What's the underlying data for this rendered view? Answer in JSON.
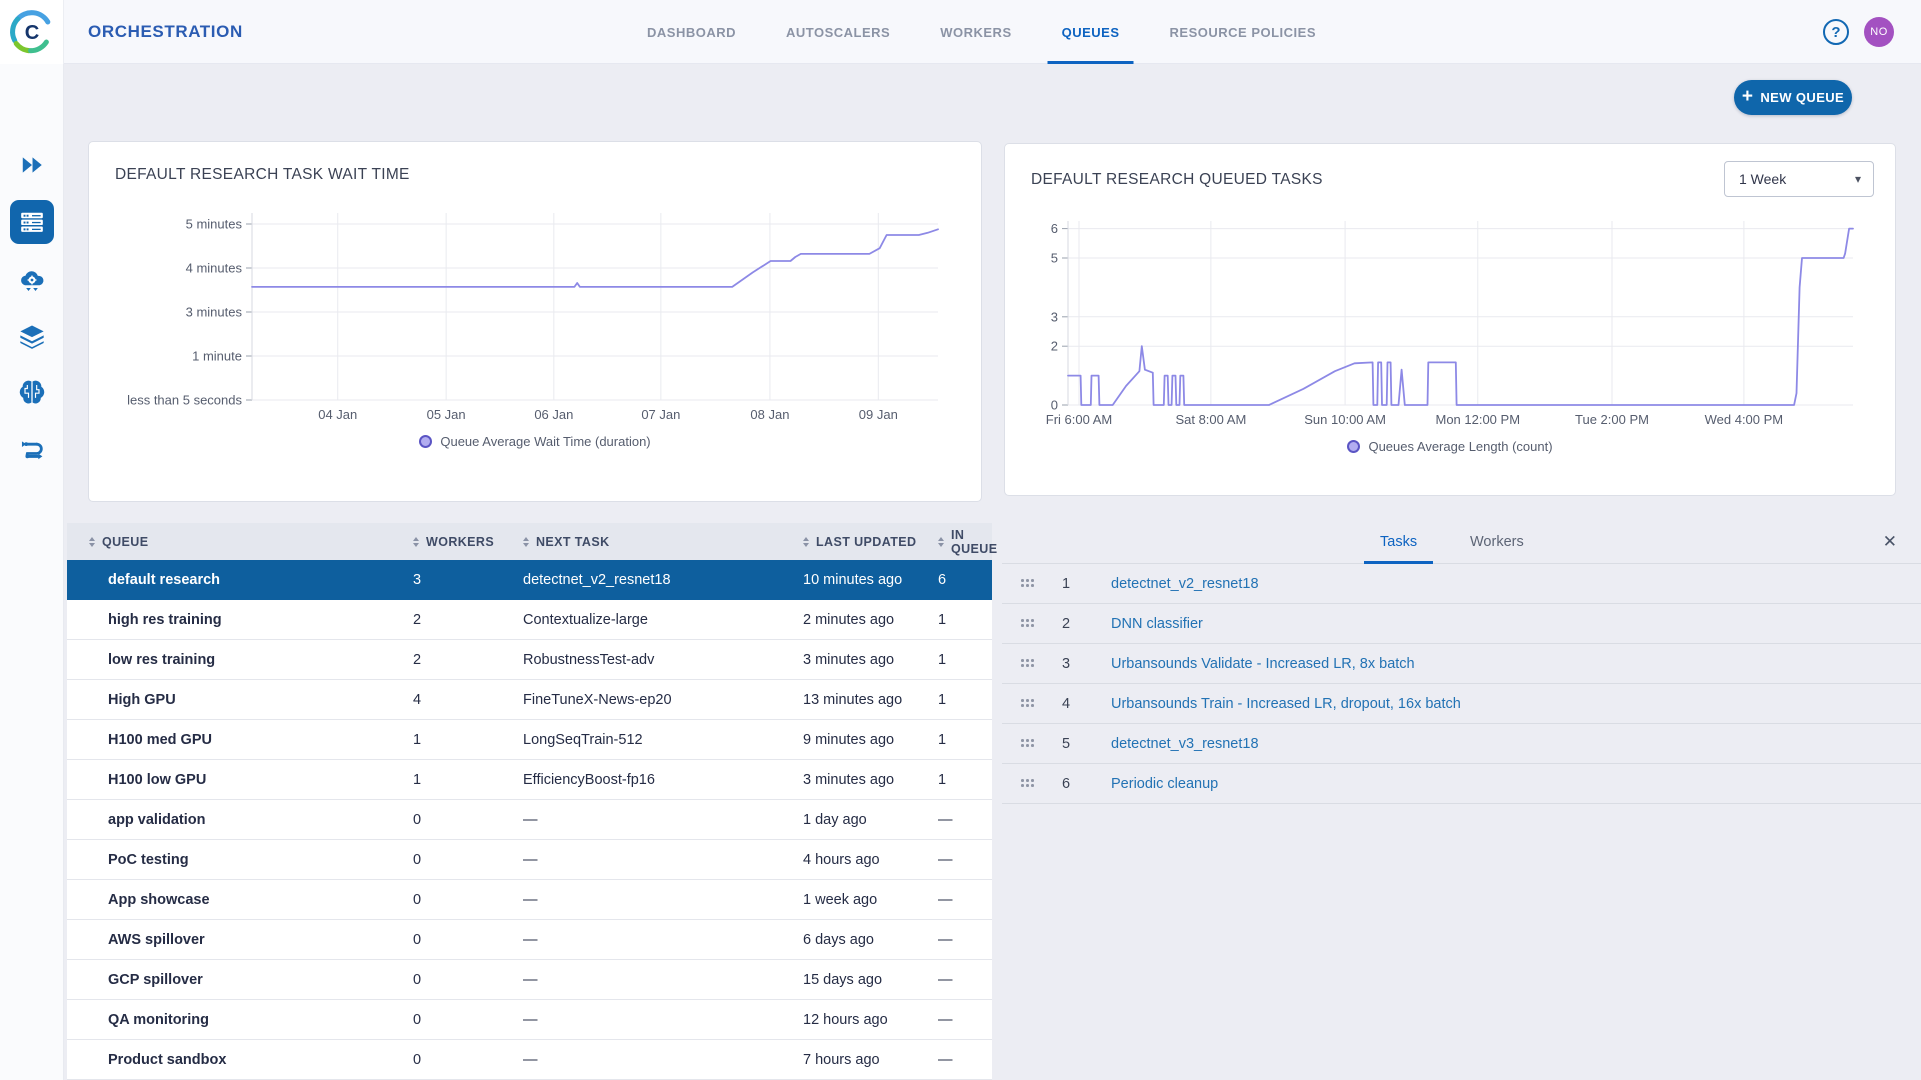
{
  "app": {
    "title": "ORCHESTRATION"
  },
  "topnav": {
    "tabs": [
      {
        "label": "DASHBOARD",
        "active": false
      },
      {
        "label": "AUTOSCALERS",
        "active": false
      },
      {
        "label": "WORKERS",
        "active": false
      },
      {
        "label": "QUEUES",
        "active": true
      },
      {
        "label": "RESOURCE POLICIES",
        "active": false
      }
    ],
    "help_label": "?",
    "avatar_initials": "NO"
  },
  "sidebar": {
    "items": [
      {
        "name": "fast-forward"
      },
      {
        "name": "server-rack-orchestration",
        "active": true
      },
      {
        "name": "cloud-autoscaler"
      },
      {
        "name": "layers"
      },
      {
        "name": "brain"
      },
      {
        "name": "pipeline"
      }
    ]
  },
  "actions": {
    "new_queue_label": "NEW QUEUE",
    "new_queue_plus": "+"
  },
  "icons": {
    "help": "?",
    "close": "✕",
    "dropdown_caret": "▾",
    "sort": "up/down carets",
    "drag_handle": "six-dot grid"
  },
  "chart_data": [
    {
      "type": "line",
      "title": "DEFAULT RESEARCH TASK WAIT TIME",
      "legend": "Queue Average Wait Time (duration)",
      "line_color": "#8d89e6",
      "x_ticks": [
        {
          "label": "04 Jan",
          "f": 0.125
        },
        {
          "label": "05 Jan",
          "f": 0.283
        },
        {
          "label": "06 Jan",
          "f": 0.44
        },
        {
          "label": "07 Jan",
          "f": 0.596
        },
        {
          "label": "08 Jan",
          "f": 0.755
        },
        {
          "label": "09 Jan",
          "f": 0.913
        }
      ],
      "y_ticks": [
        {
          "label": "less than 5 seconds",
          "v": 0
        },
        {
          "label": "1 minute",
          "v": 1
        },
        {
          "label": "3 minutes",
          "v": 2
        },
        {
          "label": "4 minutes",
          "v": 3
        },
        {
          "label": "5 minutes",
          "v": 4
        }
      ],
      "y_scale_note": "non-linear duration axis; point y values are in tick units (0=less than 5 seconds, 1=1 minute, 2=3 minutes, 3=4 minutes, 4=5 minutes); flat section ~3.6 minutes rising to ~4.4 minutes",
      "points": [
        [
          0,
          2.57
        ],
        [
          0.47,
          2.57
        ],
        [
          0.474,
          2.66
        ],
        [
          0.478,
          2.57
        ],
        [
          0.7,
          2.57
        ],
        [
          0.73,
          2.9
        ],
        [
          0.756,
          3.16
        ],
        [
          0.785,
          3.16
        ],
        [
          0.792,
          3.25
        ],
        [
          0.8,
          3.32
        ],
        [
          0.9,
          3.32
        ],
        [
          0.915,
          3.45
        ],
        [
          0.925,
          3.75
        ],
        [
          0.972,
          3.75
        ],
        [
          0.985,
          3.8
        ],
        [
          1,
          3.88
        ]
      ]
    },
    {
      "type": "line",
      "title": "DEFAULT RESEARCH QUEUED TASKS",
      "legend": "Queues Average Length (count)",
      "line_color": "#8d89e6",
      "range_selector": "1 Week",
      "x_ticks": [
        {
          "label": "Fri 6:00 AM",
          "f": 0.014
        },
        {
          "label": "Sat 8:00 AM",
          "f": 0.182
        },
        {
          "label": "Sun 10:00 AM",
          "f": 0.353
        },
        {
          "label": "Mon 12:00 PM",
          "f": 0.522
        },
        {
          "label": "Tue 2:00 PM",
          "f": 0.693
        },
        {
          "label": "Wed 4:00 PM",
          "f": 0.861
        }
      ],
      "y_ticks": [
        {
          "label": "6",
          "v": 6
        },
        {
          "label": "5",
          "v": 5
        },
        {
          "label": "3",
          "v": 3
        },
        {
          "label": "2",
          "v": 2
        },
        {
          "label": "0",
          "v": 0
        }
      ],
      "ylim": [
        0,
        6
      ],
      "points": [
        [
          0,
          1
        ],
        [
          0.016,
          1
        ],
        [
          0.017,
          0
        ],
        [
          0.029,
          0
        ],
        [
          0.03,
          1
        ],
        [
          0.039,
          1
        ],
        [
          0.04,
          0
        ],
        [
          0.057,
          0
        ],
        [
          0.074,
          0.65
        ],
        [
          0.091,
          1.15
        ],
        [
          0.094,
          2
        ],
        [
          0.098,
          1.2
        ],
        [
          0.108,
          1.1
        ],
        [
          0.109,
          0
        ],
        [
          0.122,
          0
        ],
        [
          0.123,
          1
        ],
        [
          0.127,
          1
        ],
        [
          0.128,
          0
        ],
        [
          0.132,
          0
        ],
        [
          0.133,
          1
        ],
        [
          0.137,
          1
        ],
        [
          0.138,
          0
        ],
        [
          0.142,
          0
        ],
        [
          0.143,
          1
        ],
        [
          0.147,
          1
        ],
        [
          0.148,
          0
        ],
        [
          0.256,
          0
        ],
        [
          0.3,
          0.55
        ],
        [
          0.34,
          1.15
        ],
        [
          0.365,
          1.42
        ],
        [
          0.388,
          1.45
        ],
        [
          0.389,
          0
        ],
        [
          0.394,
          0
        ],
        [
          0.395,
          1.45
        ],
        [
          0.399,
          1.45
        ],
        [
          0.4,
          0
        ],
        [
          0.406,
          0
        ],
        [
          0.407,
          1.45
        ],
        [
          0.411,
          1.45
        ],
        [
          0.412,
          0
        ],
        [
          0.421,
          0
        ],
        [
          0.425,
          1.2
        ],
        [
          0.429,
          0
        ],
        [
          0.458,
          0
        ],
        [
          0.459,
          1.45
        ],
        [
          0.494,
          1.45
        ],
        [
          0.495,
          0
        ],
        [
          0.925,
          0
        ],
        [
          0.928,
          0.4
        ],
        [
          0.932,
          4
        ],
        [
          0.935,
          5
        ],
        [
          0.988,
          5
        ],
        [
          0.99,
          5.15
        ],
        [
          0.995,
          6
        ],
        [
          1,
          6
        ]
      ]
    }
  ],
  "queues_table": {
    "columns": [
      "QUEUE",
      "WORKERS",
      "NEXT TASK",
      "LAST UPDATED",
      "IN QUEUE"
    ],
    "rows": [
      {
        "queue": "default research",
        "workers": "3",
        "next_task": "detectnet_v2_resnet18",
        "last_updated": "10 minutes ago",
        "in_queue": "6",
        "selected": true
      },
      {
        "queue": "high res training",
        "workers": "2",
        "next_task": "Contextualize-large",
        "last_updated": "2 minutes ago",
        "in_queue": "1",
        "selected": false
      },
      {
        "queue": "low res training",
        "workers": "2",
        "next_task": "RobustnessTest-adv",
        "last_updated": "3 minutes ago",
        "in_queue": "1",
        "selected": false
      },
      {
        "queue": "High GPU",
        "workers": "4",
        "next_task": "FineTuneX-News-ep20",
        "last_updated": "13 minutes ago",
        "in_queue": "1",
        "selected": false
      },
      {
        "queue": "H100 med GPU",
        "workers": "1",
        "next_task": "LongSeqTrain-512",
        "last_updated": "9 minutes ago",
        "in_queue": "1",
        "selected": false
      },
      {
        "queue": "H100 low GPU",
        "workers": "1",
        "next_task": "EfficiencyBoost-fp16",
        "last_updated": "3 minutes ago",
        "in_queue": "1",
        "selected": false
      },
      {
        "queue": "app validation",
        "workers": "0",
        "next_task": "—",
        "last_updated": "1 day ago",
        "in_queue": "—",
        "selected": false
      },
      {
        "queue": "PoC testing",
        "workers": "0",
        "next_task": "—",
        "last_updated": "4 hours ago",
        "in_queue": "—",
        "selected": false
      },
      {
        "queue": "App showcase",
        "workers": "0",
        "next_task": "—",
        "last_updated": "1 week ago",
        "in_queue": "—",
        "selected": false
      },
      {
        "queue": "AWS spillover",
        "workers": "0",
        "next_task": "—",
        "last_updated": "6 days ago",
        "in_queue": "—",
        "selected": false
      },
      {
        "queue": "GCP spillover",
        "workers": "0",
        "next_task": "—",
        "last_updated": "15 days ago",
        "in_queue": "—",
        "selected": false
      },
      {
        "queue": "QA monitoring",
        "workers": "0",
        "next_task": "—",
        "last_updated": "12 hours ago",
        "in_queue": "—",
        "selected": false
      },
      {
        "queue": "Product sandbox",
        "workers": "0",
        "next_task": "—",
        "last_updated": "7 hours ago",
        "in_queue": "—",
        "selected": false
      }
    ]
  },
  "panel": {
    "tabs": [
      {
        "label": "Tasks",
        "active": true
      },
      {
        "label": "Workers",
        "active": false
      }
    ],
    "close_label": "✕",
    "tasks": [
      {
        "index": "1",
        "name": "detectnet_v2_resnet18"
      },
      {
        "index": "2",
        "name": "DNN classifier"
      },
      {
        "index": "3",
        "name": "Urbansounds Validate - Increased LR, 8x batch"
      },
      {
        "index": "4",
        "name": "Urbansounds Train - Increased LR, dropout, 16x batch"
      },
      {
        "index": "5",
        "name": "detectnet_v3_resnet18"
      },
      {
        "index": "6",
        "name": "Periodic cleanup"
      }
    ]
  },
  "colors": {
    "accent_blue": "#0d63c1",
    "selected_row": "#0e5f9e",
    "button_blue": "#0f66ab",
    "chart_line": "#8d89e6",
    "avatar_purple": "#a351c1",
    "link_blue": "#2272b4"
  }
}
